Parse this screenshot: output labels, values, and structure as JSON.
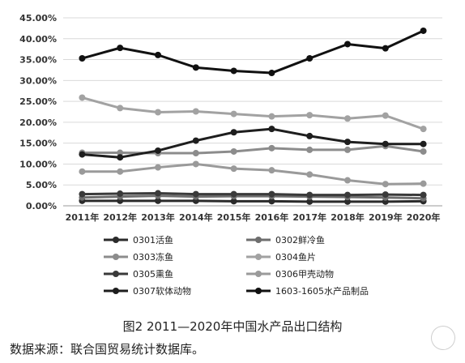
{
  "chart_data": {
    "type": "line",
    "title": "",
    "xlabel": "",
    "ylabel": "",
    "ylim": [
      0,
      45
    ],
    "grid": "horizontal",
    "legend_placement": "bottom",
    "y_tick_labels": [
      "0.00%",
      "5.00%",
      "10.00%",
      "15.00%",
      "20.00%",
      "25.00%",
      "30.00%",
      "35.00%",
      "40.00%",
      "45.00%"
    ],
    "categories": [
      "2011年",
      "2012年",
      "2013年",
      "2014年",
      "2015年",
      "2016年",
      "2017年",
      "2018年",
      "2019年",
      "2020年"
    ],
    "series": [
      {
        "name": "0301活鱼",
        "color": "#2b2b2b",
        "values": [
          1.2,
          1.2,
          1.2,
          1.2,
          1.1,
          1.1,
          1.0,
          1.0,
          1.0,
          1.1
        ]
      },
      {
        "name": "0302鲜冷鱼",
        "color": "#6e6e6e",
        "values": [
          2.0,
          2.2,
          2.4,
          2.2,
          2.3,
          2.3,
          2.2,
          2.1,
          2.0,
          1.8
        ]
      },
      {
        "name": "0303冻鱼",
        "color": "#8c8c8c",
        "values": [
          12.7,
          12.7,
          12.6,
          12.6,
          13.0,
          13.8,
          13.4,
          13.4,
          14.3,
          13.0
        ]
      },
      {
        "name": "0304鱼片",
        "color": "#a2a2a2",
        "values": [
          25.9,
          23.4,
          22.4,
          22.6,
          22.0,
          21.4,
          21.7,
          20.9,
          21.6,
          18.4
        ]
      },
      {
        "name": "0305熏鱼",
        "color": "#3a3a3a",
        "values": [
          2.8,
          2.9,
          3.0,
          2.8,
          2.8,
          2.8,
          2.6,
          2.6,
          2.7,
          2.6
        ]
      },
      {
        "name": "0306甲壳动物",
        "color": "#9a9a9a",
        "values": [
          8.2,
          8.2,
          9.2,
          10.0,
          8.9,
          8.5,
          7.5,
          6.1,
          5.2,
          5.3
        ]
      },
      {
        "name": "0307软体动物",
        "color": "#1e1e1e",
        "values": [
          12.3,
          11.6,
          13.2,
          15.6,
          17.6,
          18.4,
          16.7,
          15.3,
          14.8,
          14.8
        ]
      },
      {
        "name": "1603-1605水产品制品",
        "color": "#111111",
        "values": [
          35.3,
          37.8,
          36.1,
          33.1,
          32.3,
          31.8,
          35.3,
          38.7,
          37.7,
          41.9
        ]
      }
    ]
  },
  "caption": "图2  2011—2020年中国水产品出口结构",
  "source": "数据来源：联合国贸易统计数据库。"
}
